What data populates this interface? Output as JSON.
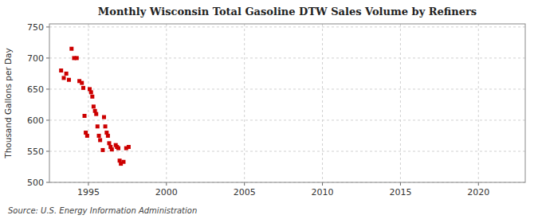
{
  "chart_data": {
    "type": "scatter",
    "title": "Monthly Wisconsin Total Gasoline DTW Sales Volume by Refiners",
    "y_label": "Thousand Gallons per Day",
    "source": "Source: U.S. Energy Information Administration",
    "color": "#cc0000",
    "marker": "square",
    "grid": true,
    "xlim": [
      1992.5,
      2023
    ],
    "ylim": [
      500,
      755
    ],
    "xticks": [
      1995,
      2000,
      2005,
      2010,
      2015,
      2020
    ],
    "yticks": [
      500,
      550,
      600,
      650,
      700,
      750
    ],
    "x": [
      1993.25,
      1993.42,
      1993.58,
      1993.75,
      1993.92,
      1994.08,
      1994.25,
      1994.42,
      1994.58,
      1994.67,
      1994.75,
      1994.83,
      1994.92,
      1995.08,
      1995.17,
      1995.25,
      1995.33,
      1995.42,
      1995.5,
      1995.58,
      1995.67,
      1995.75,
      1995.92,
      1996.0,
      1996.08,
      1996.17,
      1996.25,
      1996.33,
      1996.42,
      1996.5,
      1996.75,
      1996.83,
      1996.92,
      1997.0,
      1997.08,
      1997.25,
      1997.42,
      1997.58
    ],
    "values": [
      680,
      668,
      675,
      665,
      715,
      700,
      700,
      663,
      660,
      652,
      607,
      580,
      575,
      650,
      645,
      638,
      622,
      615,
      610,
      590,
      575,
      568,
      552,
      605,
      590,
      580,
      575,
      563,
      557,
      553,
      560,
      557,
      555,
      535,
      530,
      533,
      555,
      557
    ]
  }
}
